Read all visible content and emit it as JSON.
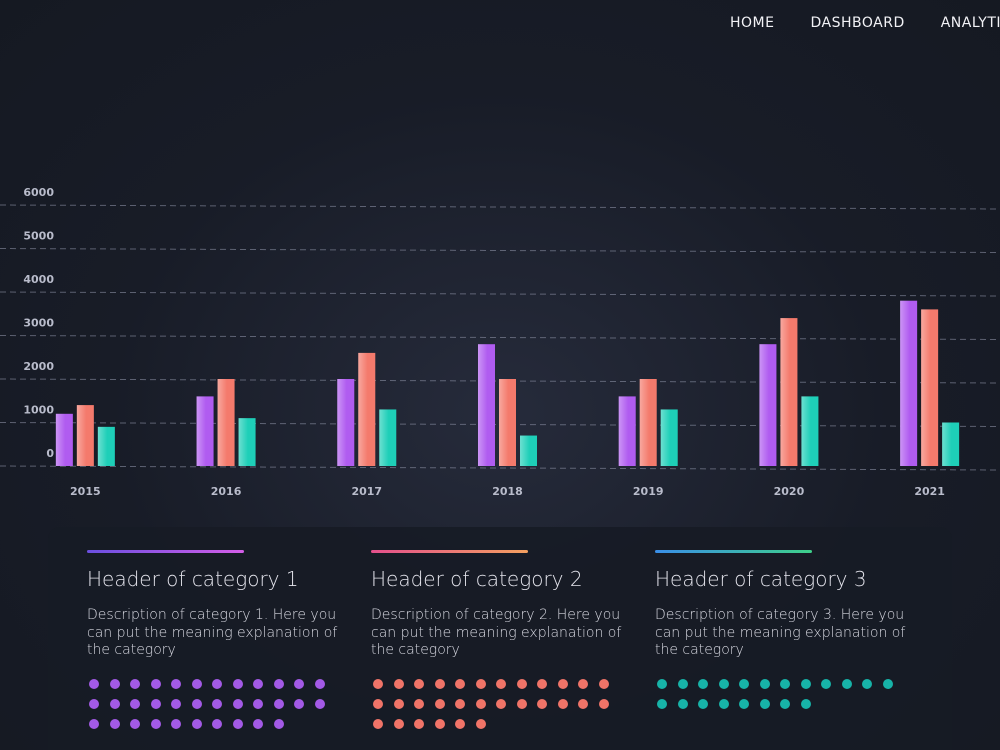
{
  "nav": {
    "items": [
      "HOME",
      "DASHBOARD",
      "ANALYTICS"
    ]
  },
  "chart_data": {
    "type": "bar",
    "categories": [
      "2015",
      "2016",
      "2017",
      "2018",
      "2019",
      "2020",
      "2021"
    ],
    "series": [
      {
        "color": "#b05cf0",
        "values": [
          1200,
          1600,
          2000,
          2800,
          1600,
          2800,
          3800
        ]
      },
      {
        "color": "#f47a6c",
        "values": [
          1400,
          2000,
          2600,
          2000,
          2000,
          3400,
          3600
        ]
      },
      {
        "color": "#1ecfb8",
        "values": [
          900,
          1100,
          1300,
          700,
          1300,
          1600,
          1000
        ]
      }
    ],
    "ylim": [
      0,
      6000
    ],
    "yticks": [
      0,
      1000,
      2000,
      3000,
      4000,
      5000,
      6000
    ],
    "grid": true
  },
  "cards": [
    {
      "title": "Header of category 1",
      "description": "Description of category 1. Here you can put the meaning explanation of the category",
      "color": "#a35ae6",
      "dots": 34
    },
    {
      "title": "Header of category 2",
      "description": "Description of category 2. Here you can put the meaning explanation of the category",
      "color": "#f07468",
      "dots": 30
    },
    {
      "title": "Header of category 3",
      "description": "Description of category 3. Here you can put the meaning explanation of the category",
      "color": "#17b3a8",
      "dots": 20
    }
  ]
}
